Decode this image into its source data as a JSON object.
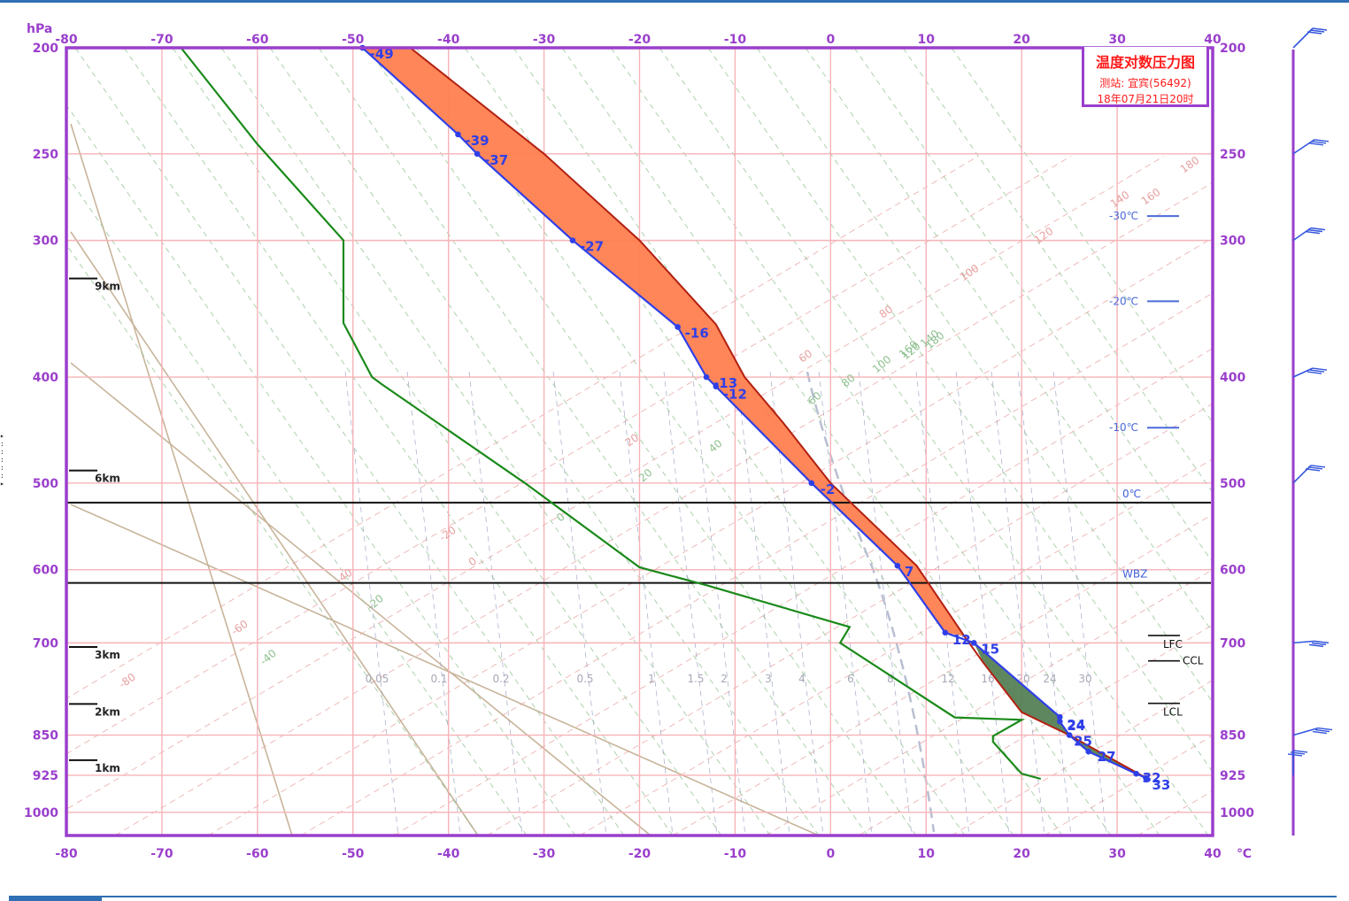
{
  "legend": {
    "title": "温度对数压力图",
    "station": "测站: 宜宾(56492)",
    "time": "18年07月21日20时"
  },
  "axis": {
    "pressure_unit": "hPa",
    "temperature_unit": "℃",
    "pressure_ticks": [
      200,
      250,
      300,
      400,
      500,
      600,
      700,
      850,
      925,
      1000
    ],
    "temperature_ticks": [
      -80,
      -70,
      -60,
      -50,
      -40,
      -30,
      -20,
      -10,
      0,
      10,
      20,
      30,
      40
    ],
    "xlim": [
      -80,
      40
    ],
    "ylim": [
      1050,
      200
    ]
  },
  "colors": {
    "frame": "#9a3fcc",
    "temperature": "#2f3fe8",
    "dewpoint": "#1a8a1a",
    "parcel": "#b22010",
    "cape_fill": "#ff7f50",
    "cin_fill": "#4e7a4e",
    "isotherm_isobar": "#f6b3b8",
    "dry_adiabat": "#e89a9a",
    "moist_adiabat": "#8fbf8f",
    "mixing_ratio": "#8a96b8",
    "height_line": "#c8b49a"
  },
  "chart_data": {
    "type": "line",
    "title": "温度对数压力图",
    "xlabel": "℃",
    "ylabel": "hPa",
    "series": [
      {
        "points": [
          [
            -49,
            200
          ],
          [
            -39,
            240
          ],
          [
            -37,
            250
          ],
          [
            -27,
            300
          ],
          [
            -16,
            360
          ],
          [
            -13,
            400
          ],
          [
            -12,
            408
          ],
          [
            -2,
            500
          ],
          [
            7,
            595
          ],
          [
            12,
            685
          ],
          [
            15,
            700
          ],
          [
            24,
            818
          ],
          [
            24,
            826
          ],
          [
            25,
            850
          ],
          [
            27,
            880
          ],
          [
            32,
            922
          ],
          [
            33,
            930
          ]
        ],
        "point_labels": [
          "-49",
          "-39",
          "-37",
          "-27",
          "-16",
          "-13",
          "-12",
          "-2",
          "7",
          "12",
          "15",
          "24",
          "24",
          "25",
          "27",
          "32",
          "33"
        ]
      },
      {
        "points": [
          [
            -68,
            200
          ],
          [
            -60,
            245
          ],
          [
            -51,
            300
          ],
          [
            -51,
            357
          ],
          [
            -48,
            400
          ],
          [
            -47,
            406
          ],
          [
            -32,
            500
          ],
          [
            -20,
            597
          ],
          [
            -13,
            620
          ],
          [
            2,
            677
          ],
          [
            1,
            700
          ],
          [
            13,
            819
          ],
          [
            20,
            823
          ],
          [
            17,
            852
          ],
          [
            17,
            862
          ],
          [
            20,
            922
          ],
          [
            22,
            932
          ]
        ]
      },
      {
        "points": [
          [
            -44,
            200
          ],
          [
            -30,
            250
          ],
          [
            -20,
            300
          ],
          [
            -12,
            358
          ],
          [
            -9,
            400
          ],
          [
            -5,
            440
          ],
          [
            0,
            500
          ],
          [
            9,
            595
          ],
          [
            14,
            690
          ],
          [
            16,
            730
          ],
          [
            20,
            810
          ],
          [
            25,
            850
          ],
          [
            33,
            930
          ]
        ]
      }
    ],
    "level_lines": [
      {
        "label": "0℃",
        "pressure": 521
      },
      {
        "label": "WBZ",
        "pressure": 617
      }
    ],
    "height_markers": [
      {
        "label": "9km",
        "pressure": 325
      },
      {
        "label": "6km",
        "pressure": 487
      },
      {
        "label": "3km",
        "pressure": 706
      },
      {
        "label": "2km",
        "pressure": 796
      },
      {
        "label": "1km",
        "pressure": 896
      }
    ],
    "right_labels": [
      {
        "label": "-30℃",
        "pressure": 285
      },
      {
        "label": "-20℃",
        "pressure": 341
      },
      {
        "label": "-10℃",
        "pressure": 445
      },
      {
        "label": "LFC",
        "pressure": 697
      },
      {
        "label": "CCL",
        "pressure": 727
      },
      {
        "label": "LCL",
        "pressure": 804
      }
    ],
    "mixing_ratio_labels": [
      "0.05",
      "0.1",
      "0.2",
      "0.5",
      "1",
      "1.5",
      "2",
      "3",
      "4",
      "6",
      "8",
      "12",
      "16",
      "20",
      "24",
      "30"
    ],
    "dry_adiabat_labels": [
      "-80",
      "-60",
      "-40",
      "-20",
      "0",
      "20",
      "40",
      "60",
      "80",
      "100",
      "120",
      "140",
      "160",
      "180"
    ],
    "moist_adiabat_labels": [
      "-40",
      "-20",
      "0",
      "20",
      "40",
      "60",
      "80",
      "100",
      "120",
      "140",
      "160",
      "180"
    ],
    "wind_barbs_pressure": [
      200,
      250,
      300,
      400,
      500,
      700,
      850,
      925
    ]
  }
}
